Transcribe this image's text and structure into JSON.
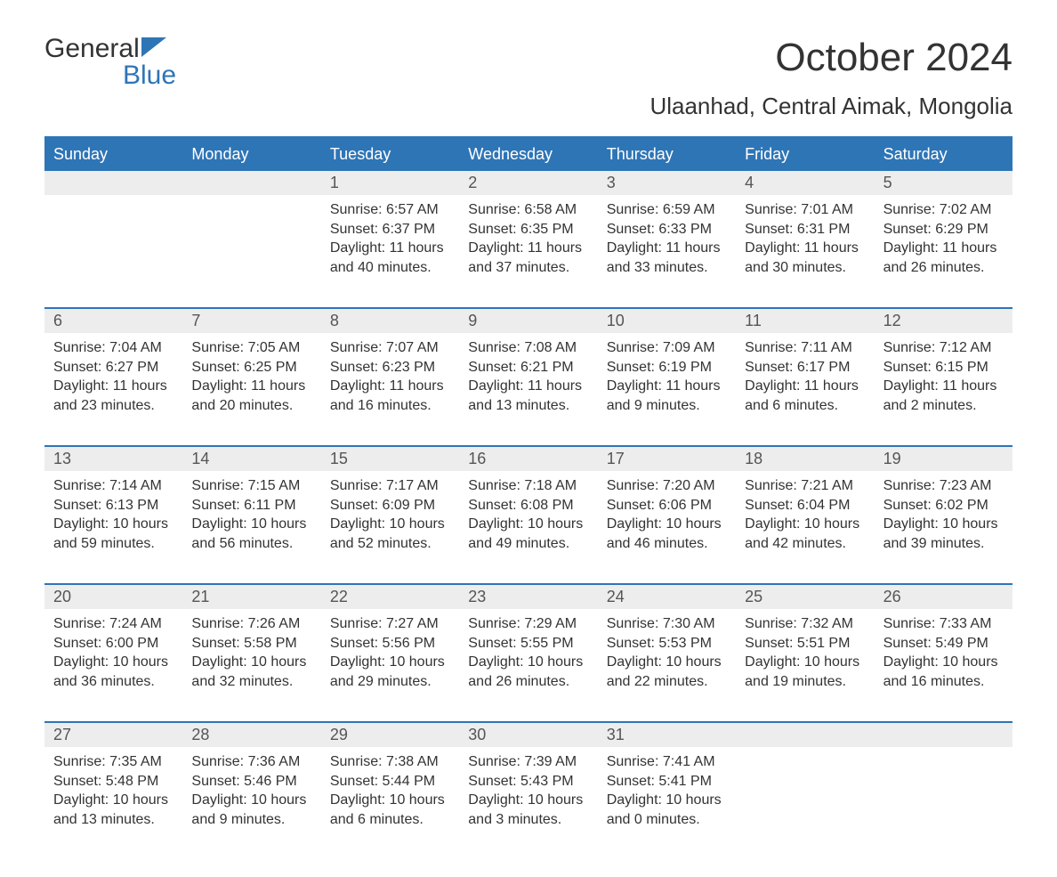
{
  "logo": {
    "top": "General",
    "bottom": "Blue"
  },
  "title": "October 2024",
  "location": "Ulaanhad, Central Aimak, Mongolia",
  "colors": {
    "header_bg": "#2e75b6",
    "header_fg": "#ffffff",
    "daynum_bg": "#ededed",
    "page_bg": "#ffffff",
    "text": "#333333"
  },
  "day_names": [
    "Sunday",
    "Monday",
    "Tuesday",
    "Wednesday",
    "Thursday",
    "Friday",
    "Saturday"
  ],
  "labels": {
    "sunrise": "Sunrise:",
    "sunset": "Sunset:",
    "daylight": "Daylight:"
  },
  "weeks": [
    [
      null,
      null,
      {
        "n": "1",
        "rise": "6:57 AM",
        "set": "6:37 PM",
        "dl1": "11 hours",
        "dl2": "and 40 minutes."
      },
      {
        "n": "2",
        "rise": "6:58 AM",
        "set": "6:35 PM",
        "dl1": "11 hours",
        "dl2": "and 37 minutes."
      },
      {
        "n": "3",
        "rise": "6:59 AM",
        "set": "6:33 PM",
        "dl1": "11 hours",
        "dl2": "and 33 minutes."
      },
      {
        "n": "4",
        "rise": "7:01 AM",
        "set": "6:31 PM",
        "dl1": "11 hours",
        "dl2": "and 30 minutes."
      },
      {
        "n": "5",
        "rise": "7:02 AM",
        "set": "6:29 PM",
        "dl1": "11 hours",
        "dl2": "and 26 minutes."
      }
    ],
    [
      {
        "n": "6",
        "rise": "7:04 AM",
        "set": "6:27 PM",
        "dl1": "11 hours",
        "dl2": "and 23 minutes."
      },
      {
        "n": "7",
        "rise": "7:05 AM",
        "set": "6:25 PM",
        "dl1": "11 hours",
        "dl2": "and 20 minutes."
      },
      {
        "n": "8",
        "rise": "7:07 AM",
        "set": "6:23 PM",
        "dl1": "11 hours",
        "dl2": "and 16 minutes."
      },
      {
        "n": "9",
        "rise": "7:08 AM",
        "set": "6:21 PM",
        "dl1": "11 hours",
        "dl2": "and 13 minutes."
      },
      {
        "n": "10",
        "rise": "7:09 AM",
        "set": "6:19 PM",
        "dl1": "11 hours",
        "dl2": "and 9 minutes."
      },
      {
        "n": "11",
        "rise": "7:11 AM",
        "set": "6:17 PM",
        "dl1": "11 hours",
        "dl2": "and 6 minutes."
      },
      {
        "n": "12",
        "rise": "7:12 AM",
        "set": "6:15 PM",
        "dl1": "11 hours",
        "dl2": "and 2 minutes."
      }
    ],
    [
      {
        "n": "13",
        "rise": "7:14 AM",
        "set": "6:13 PM",
        "dl1": "10 hours",
        "dl2": "and 59 minutes."
      },
      {
        "n": "14",
        "rise": "7:15 AM",
        "set": "6:11 PM",
        "dl1": "10 hours",
        "dl2": "and 56 minutes."
      },
      {
        "n": "15",
        "rise": "7:17 AM",
        "set": "6:09 PM",
        "dl1": "10 hours",
        "dl2": "and 52 minutes."
      },
      {
        "n": "16",
        "rise": "7:18 AM",
        "set": "6:08 PM",
        "dl1": "10 hours",
        "dl2": "and 49 minutes."
      },
      {
        "n": "17",
        "rise": "7:20 AM",
        "set": "6:06 PM",
        "dl1": "10 hours",
        "dl2": "and 46 minutes."
      },
      {
        "n": "18",
        "rise": "7:21 AM",
        "set": "6:04 PM",
        "dl1": "10 hours",
        "dl2": "and 42 minutes."
      },
      {
        "n": "19",
        "rise": "7:23 AM",
        "set": "6:02 PM",
        "dl1": "10 hours",
        "dl2": "and 39 minutes."
      }
    ],
    [
      {
        "n": "20",
        "rise": "7:24 AM",
        "set": "6:00 PM",
        "dl1": "10 hours",
        "dl2": "and 36 minutes."
      },
      {
        "n": "21",
        "rise": "7:26 AM",
        "set": "5:58 PM",
        "dl1": "10 hours",
        "dl2": "and 32 minutes."
      },
      {
        "n": "22",
        "rise": "7:27 AM",
        "set": "5:56 PM",
        "dl1": "10 hours",
        "dl2": "and 29 minutes."
      },
      {
        "n": "23",
        "rise": "7:29 AM",
        "set": "5:55 PM",
        "dl1": "10 hours",
        "dl2": "and 26 minutes."
      },
      {
        "n": "24",
        "rise": "7:30 AM",
        "set": "5:53 PM",
        "dl1": "10 hours",
        "dl2": "and 22 minutes."
      },
      {
        "n": "25",
        "rise": "7:32 AM",
        "set": "5:51 PM",
        "dl1": "10 hours",
        "dl2": "and 19 minutes."
      },
      {
        "n": "26",
        "rise": "7:33 AM",
        "set": "5:49 PM",
        "dl1": "10 hours",
        "dl2": "and 16 minutes."
      }
    ],
    [
      {
        "n": "27",
        "rise": "7:35 AM",
        "set": "5:48 PM",
        "dl1": "10 hours",
        "dl2": "and 13 minutes."
      },
      {
        "n": "28",
        "rise": "7:36 AM",
        "set": "5:46 PM",
        "dl1": "10 hours",
        "dl2": "and 9 minutes."
      },
      {
        "n": "29",
        "rise": "7:38 AM",
        "set": "5:44 PM",
        "dl1": "10 hours",
        "dl2": "and 6 minutes."
      },
      {
        "n": "30",
        "rise": "7:39 AM",
        "set": "5:43 PM",
        "dl1": "10 hours",
        "dl2": "and 3 minutes."
      },
      {
        "n": "31",
        "rise": "7:41 AM",
        "set": "5:41 PM",
        "dl1": "10 hours",
        "dl2": "and 0 minutes."
      },
      null,
      null
    ]
  ]
}
